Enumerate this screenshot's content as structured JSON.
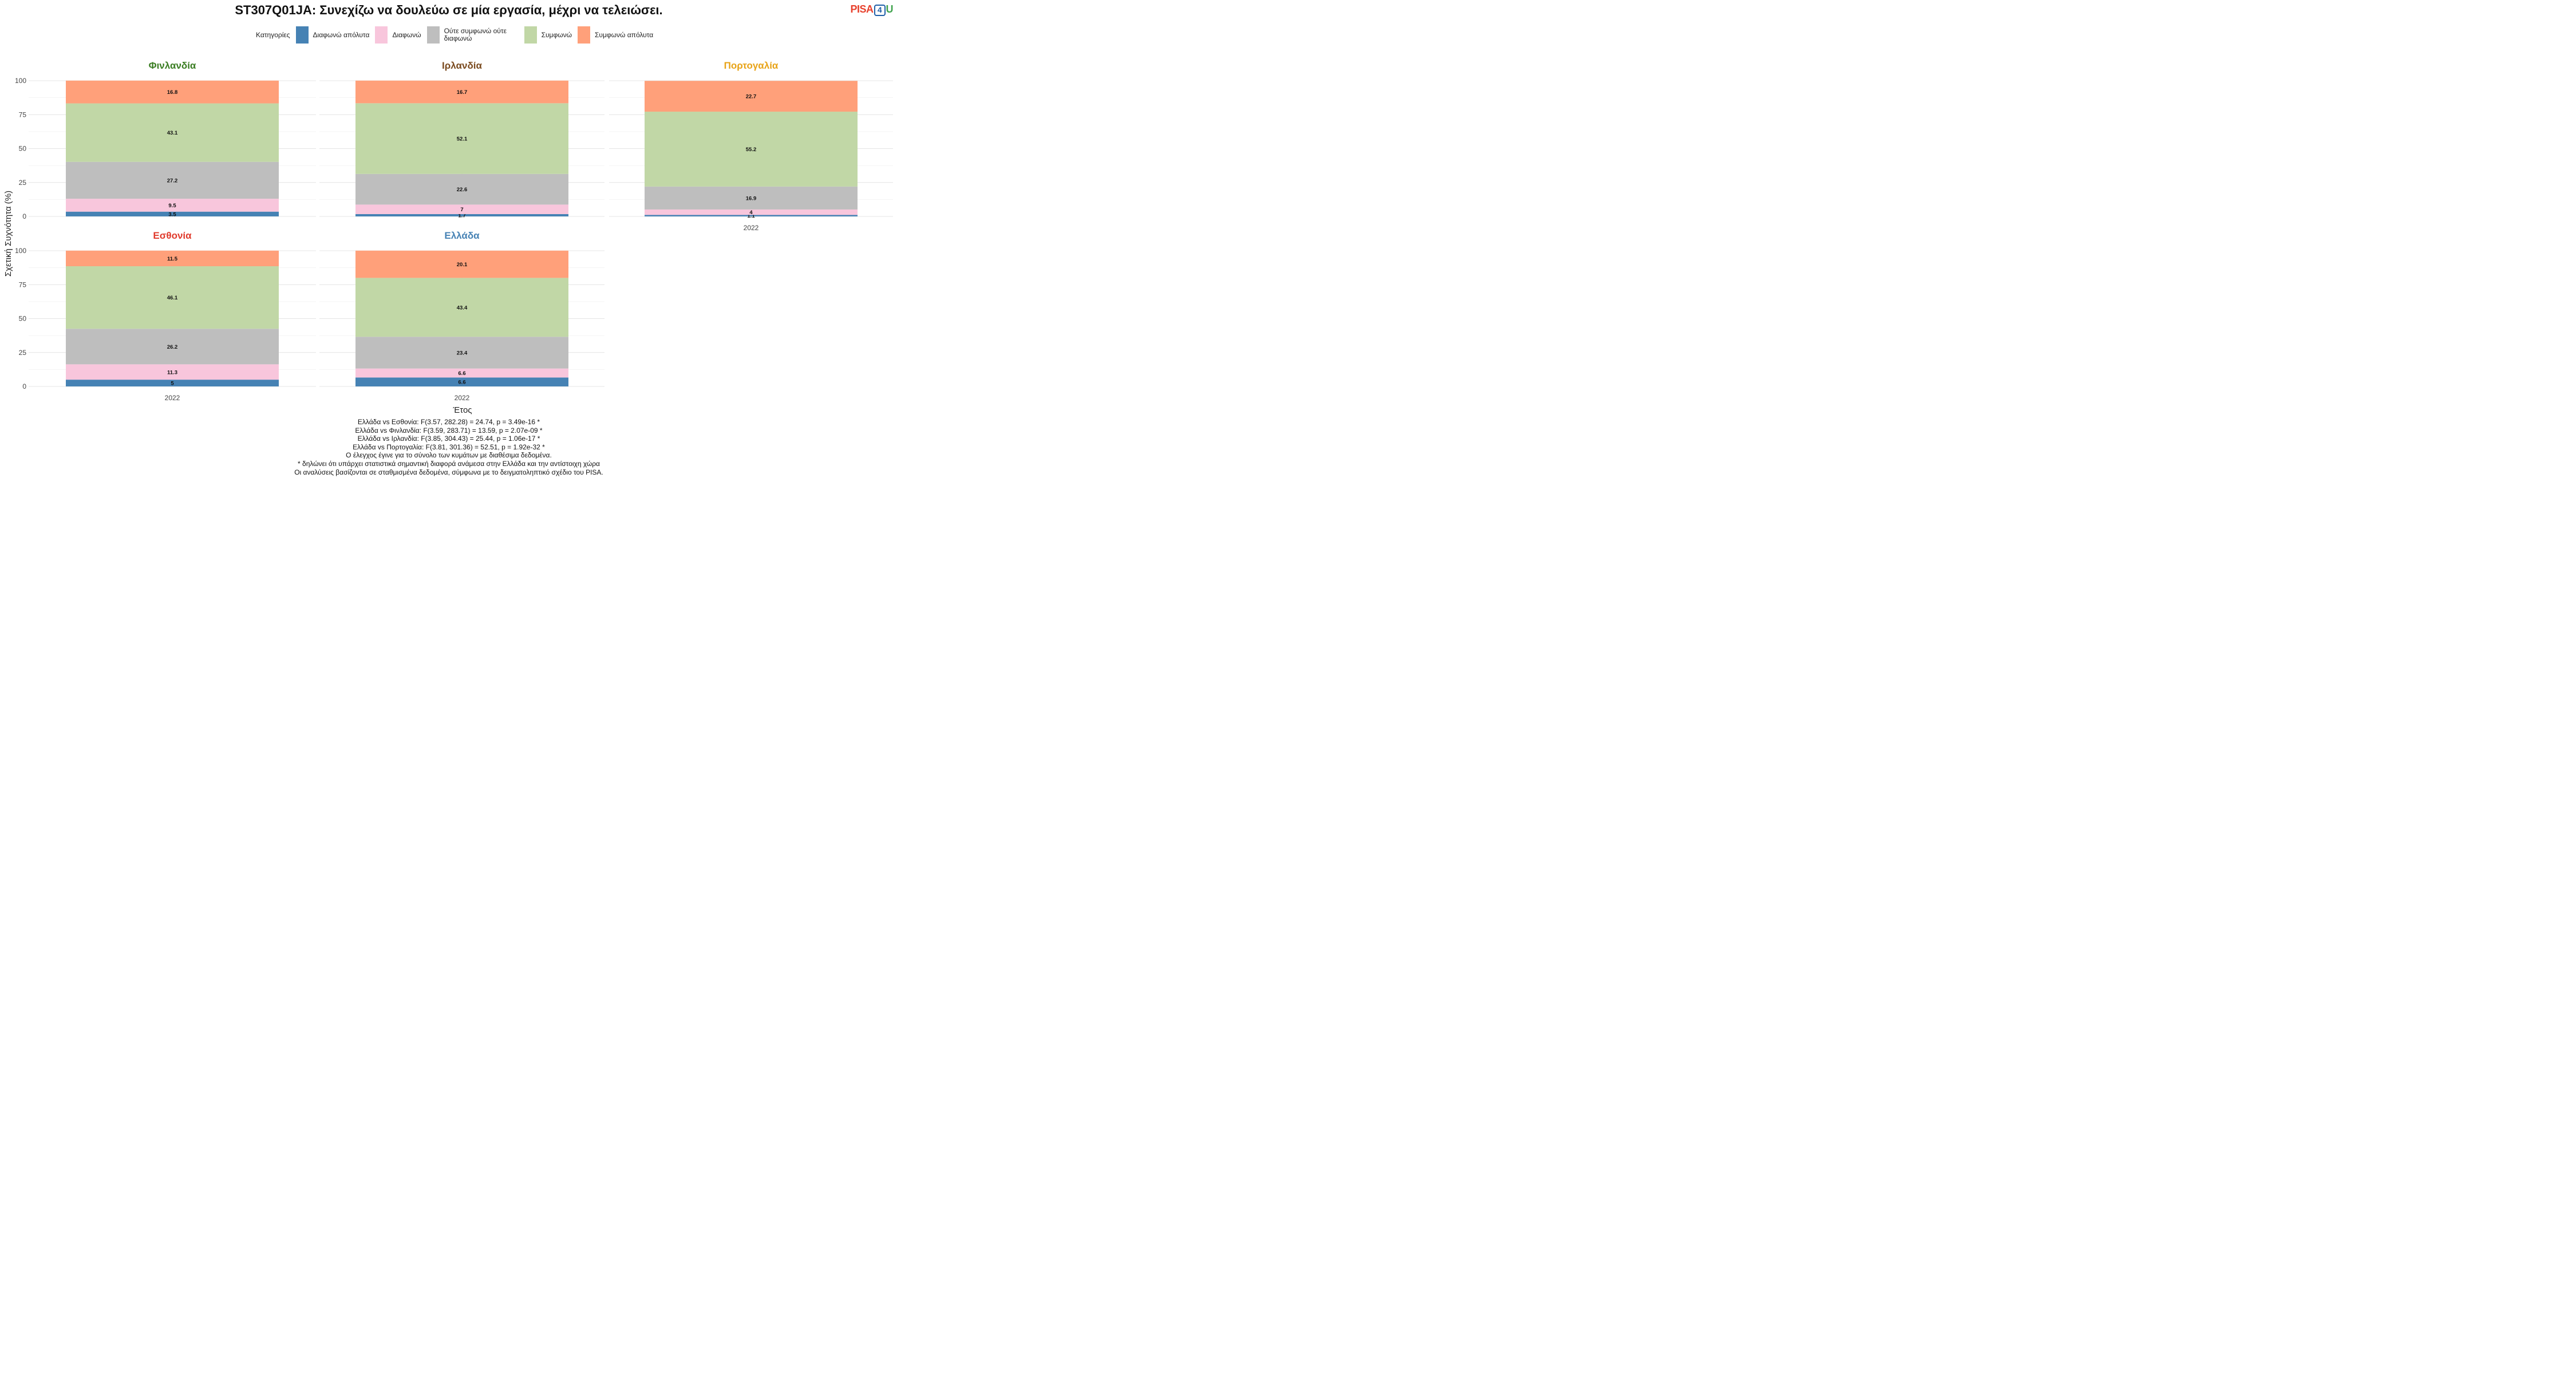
{
  "title": "ST307Q01JA: Συνεχίζω να δουλεύω σε μία εργασία, μέχρι να τελειώσει.",
  "logo": {
    "part1": "PISA",
    "part2": "4",
    "part3": "U"
  },
  "legend": {
    "title": "Κατηγορίες",
    "items": [
      {
        "label": "Διαφωνώ απόλυτα",
        "color": "#4682b4"
      },
      {
        "label": "Διαφωνώ",
        "color": "#f8c6dc"
      },
      {
        "label": "Ούτε συμφωνώ ούτε διαφωνώ",
        "color": "#bebebe"
      },
      {
        "label": "Συμφωνώ",
        "color": "#c1d7a6"
      },
      {
        "label": "Συμφωνώ απόλυτα",
        "color": "#ffa07a"
      }
    ]
  },
  "chart_data": {
    "type": "bar",
    "stacked": true,
    "ylabel": "Σχετική Συχνότητα (%)",
    "xlabel": "Έτος",
    "ylim": [
      0,
      100
    ],
    "yticks": [
      0,
      25,
      50,
      75,
      100
    ],
    "categories": [
      "2022"
    ],
    "series_names": [
      "Διαφωνώ απόλυτα",
      "Διαφωνώ",
      "Ούτε συμφωνώ ούτε διαφωνώ",
      "Συμφωνώ",
      "Συμφωνώ απόλυτα"
    ],
    "panels": [
      {
        "country": "Φινλανδία",
        "title_color": "#3a7d22",
        "values": [
          3.5,
          9.5,
          27.2,
          43.1,
          16.8
        ]
      },
      {
        "country": "Ιρλανδία",
        "title_color": "#7a4a1e",
        "values": [
          1.7,
          7,
          22.6,
          52.1,
          16.7
        ]
      },
      {
        "country": "Πορτογαλία",
        "title_color": "#e8a317",
        "values": [
          1.1,
          4,
          16.9,
          55.2,
          22.7
        ]
      },
      {
        "country": "Εσθονία",
        "title_color": "#e03a2c",
        "values": [
          5,
          11.3,
          26.2,
          46.1,
          11.5
        ]
      },
      {
        "country": "Ελλάδα",
        "title_color": "#4682b4",
        "values": [
          6.6,
          6.6,
          23.4,
          43.4,
          20.1
        ]
      }
    ]
  },
  "footnotes": [
    "Ελλάδα vs Εσθονία: F(3.57, 282.28) = 24.74, p = 3.49e-16 *",
    "Ελλάδα vs Φινλανδία: F(3.59, 283.71) = 13.59, p = 2.07e-09 *",
    "Ελλάδα vs Ιρλανδία: F(3.85, 304.43) = 25.44, p = 1.06e-17 *",
    "Ελλάδα vs Πορτογαλία: F(3.81, 301.36) = 52.51, p = 1.92e-32 *",
    "Ο έλεγχος έγινε για το σύνολο των κυμάτων με διαθέσιμα δεδομένα.",
    "* δηλώνει ότι υπάρχει στατιστικά σημαντική διαφορά ανάμεσα στην Ελλάδα και την αντίστοιχη χώρα",
    "Οι αναλύσεις βασίζονται σε σταθμισμένα δεδομένα, σύμφωνα με το δειγματοληπτικό σχέδιο του PISA."
  ]
}
